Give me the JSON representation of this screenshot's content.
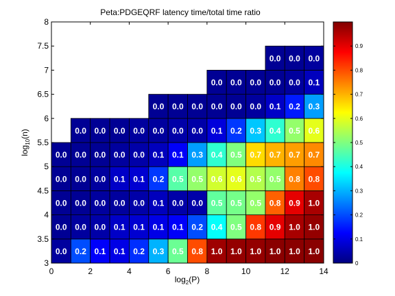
{
  "chart_data": {
    "type": "heatmap",
    "title": "Peta:PDGEQRF latency time/total time ratio",
    "xlabel": {
      "base": "log",
      "sub": "2",
      "rest": "(P)"
    },
    "ylabel": {
      "base": "log",
      "sub": "10",
      "rest": "(n)"
    },
    "xlim": [
      0,
      14
    ],
    "ylim": [
      3,
      8
    ],
    "x_ticks": [
      0,
      2,
      4,
      6,
      8,
      10,
      12,
      14
    ],
    "y_ticks": [
      "3",
      "3.5",
      "4",
      "4.5",
      "5",
      "5.5",
      "6",
      "6.5",
      "7",
      "7.5",
      "8"
    ],
    "colorbar": {
      "colormap": "jet",
      "range": [
        0,
        1
      ],
      "ticks": [
        "0",
        "0.1",
        "0.2",
        "0.3",
        "0.4",
        "0.5",
        "0.6",
        "0.7",
        "0.8",
        "0.9"
      ]
    },
    "cell_size": {
      "log2P": 1,
      "log10n": 0.5
    },
    "rows": [
      {
        "log10n": 3,
        "start_log2P": 0,
        "labels": [
          "0.0",
          "0.2",
          "0.1",
          "0.1",
          "0.2",
          "0.3",
          "0.5",
          "0.8",
          "1.0",
          "1.0",
          "1.0",
          "1.0",
          "1.0",
          "1.0"
        ],
        "values": [
          0.03,
          0.2,
          0.12,
          0.1,
          0.17,
          0.3,
          0.48,
          0.8,
          0.97,
          0.98,
          0.98,
          0.99,
          0.99,
          0.99
        ]
      },
      {
        "log10n": 3.5,
        "start_log2P": 0,
        "labels": [
          "0.0",
          "0.0",
          "0.0",
          "0.1",
          "0.1",
          "0.1",
          "0.1",
          "0.2",
          "0.4",
          "0.5",
          "0.8",
          "0.9",
          "1.0",
          "1.0"
        ],
        "values": [
          0.02,
          0.03,
          0.04,
          0.07,
          0.08,
          0.1,
          0.12,
          0.2,
          0.38,
          0.5,
          0.82,
          0.9,
          0.96,
          0.98
        ]
      },
      {
        "log10n": 4,
        "start_log2P": 0,
        "labels": [
          "0.0",
          "0.0",
          "0.0",
          "0.0",
          "0.0",
          "0.1",
          "0.0",
          "0.0",
          "0.5",
          "0.5",
          "0.5",
          "0.8",
          "0.9",
          "1.0"
        ],
        "values": [
          0.02,
          0.02,
          0.03,
          0.03,
          0.04,
          0.06,
          0.04,
          0.04,
          0.47,
          0.49,
          0.52,
          0.78,
          0.9,
          0.96
        ]
      },
      {
        "log10n": 4.5,
        "start_log2P": 0,
        "labels": [
          "0.0",
          "0.0",
          "0.0",
          "0.1",
          "0.1",
          "0.2",
          "0.5",
          "0.5",
          "0.6",
          "0.6",
          "0.5",
          "0.5",
          "0.8",
          "0.8"
        ],
        "values": [
          0.02,
          0.02,
          0.03,
          0.07,
          0.08,
          0.18,
          0.46,
          0.52,
          0.58,
          0.6,
          0.55,
          0.52,
          0.75,
          0.8
        ]
      },
      {
        "log10n": 5,
        "start_log2P": 0,
        "labels": [
          "0.0",
          "0.0",
          "0.0",
          "0.0",
          "0.0",
          "0.1",
          "0.1",
          "0.3",
          "0.4",
          "0.5",
          "0.7",
          "0.7",
          "0.7",
          "0.7"
        ],
        "values": [
          0.02,
          0.02,
          0.02,
          0.03,
          0.04,
          0.06,
          0.12,
          0.28,
          0.42,
          0.5,
          0.66,
          0.7,
          0.72,
          0.74
        ]
      },
      {
        "log10n": 5.5,
        "start_log2P": 1,
        "labels": [
          "0.0",
          "0.0",
          "0.0",
          "0.0",
          "0.0",
          "0.0",
          "0.0",
          "0.1",
          "0.2",
          "0.3",
          "0.4",
          "0.5",
          "0.6"
        ],
        "values": [
          0.02,
          0.02,
          0.02,
          0.03,
          0.03,
          0.04,
          0.04,
          0.09,
          0.18,
          0.32,
          0.42,
          0.52,
          0.6
        ]
      },
      {
        "log10n": 6,
        "start_log2P": 5,
        "labels": [
          "0.0",
          "0.0",
          "0.0",
          "0.0",
          "0.0",
          "0.0",
          "0.1",
          "0.2",
          "0.3"
        ],
        "values": [
          0.02,
          0.02,
          0.02,
          0.02,
          0.02,
          0.03,
          0.07,
          0.15,
          0.28
        ]
      },
      {
        "log10n": 6.5,
        "start_log2P": 8,
        "labels": [
          "0.0",
          "0.0",
          "0.0",
          "0.0",
          "0.0",
          "0.1"
        ],
        "values": [
          0.02,
          0.02,
          0.02,
          0.02,
          0.03,
          0.06
        ]
      },
      {
        "log10n": 7,
        "start_log2P": 11,
        "labels": [
          "0.0",
          "0.0",
          "0.0"
        ],
        "values": [
          0.02,
          0.02,
          0.03
        ]
      }
    ]
  }
}
